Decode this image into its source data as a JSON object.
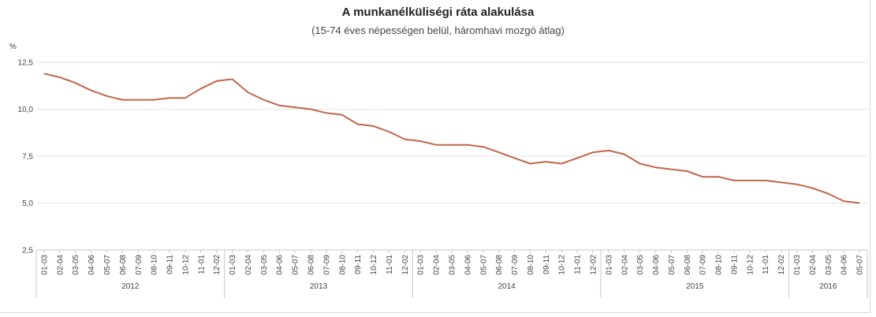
{
  "chart_data": {
    "type": "line",
    "title": "A munkanélküliségi ráta alakulása",
    "subtitle": "(15-74 éves népességen belül, háromhavi mozgó átlag)",
    "ylabel": "%",
    "ylim": [
      2.5,
      12.5
    ],
    "yticks": [
      "12,5",
      "10,0",
      "7,5",
      "5,0",
      "2,5"
    ],
    "ytick_values": [
      12.5,
      10.0,
      7.5,
      5.0,
      2.5
    ],
    "grid": true,
    "line_color": "#c0674a",
    "categories": [
      "01-03",
      "02-04",
      "03-05",
      "04-06",
      "05-07",
      "06-08",
      "07-09",
      "08-10",
      "09-11",
      "10-12",
      "11-01",
      "12-02",
      "01-03",
      "02-04",
      "03-05",
      "04-06",
      "05-07",
      "06-08",
      "07-09",
      "08-10",
      "09-11",
      "10-12",
      "11-01",
      "12-02",
      "01-03",
      "02-04",
      "03-05",
      "04-06",
      "05-07",
      "06-08",
      "07-09",
      "08-10",
      "09-11",
      "10-12",
      "11-01",
      "12-02",
      "01-03",
      "02-04",
      "03-05",
      "04-06",
      "05-07",
      "06-08",
      "07-09",
      "08-10",
      "09-11",
      "10-12",
      "11-01",
      "12-02",
      "01-03",
      "02-04",
      "03-05",
      "04-06",
      "05-07"
    ],
    "years": [
      {
        "label": "2012",
        "start": 0,
        "count": 12
      },
      {
        "label": "2013",
        "start": 12,
        "count": 12
      },
      {
        "label": "2014",
        "start": 24,
        "count": 12
      },
      {
        "label": "2015",
        "start": 36,
        "count": 12
      },
      {
        "label": "2016",
        "start": 48,
        "count": 5
      }
    ],
    "values": [
      11.9,
      11.7,
      11.4,
      11.0,
      10.7,
      10.5,
      10.5,
      10.5,
      10.6,
      10.6,
      11.1,
      11.5,
      11.6,
      10.9,
      10.5,
      10.2,
      10.1,
      10.0,
      9.8,
      9.7,
      9.2,
      9.1,
      8.8,
      8.4,
      8.3,
      8.1,
      8.1,
      8.1,
      8.0,
      7.7,
      7.4,
      7.1,
      7.2,
      7.1,
      7.4,
      7.7,
      7.8,
      7.6,
      7.1,
      6.9,
      6.8,
      6.7,
      6.4,
      6.4,
      6.2,
      6.2,
      6.2,
      6.1,
      6.0,
      5.8,
      5.5,
      5.1,
      5.0
    ]
  }
}
